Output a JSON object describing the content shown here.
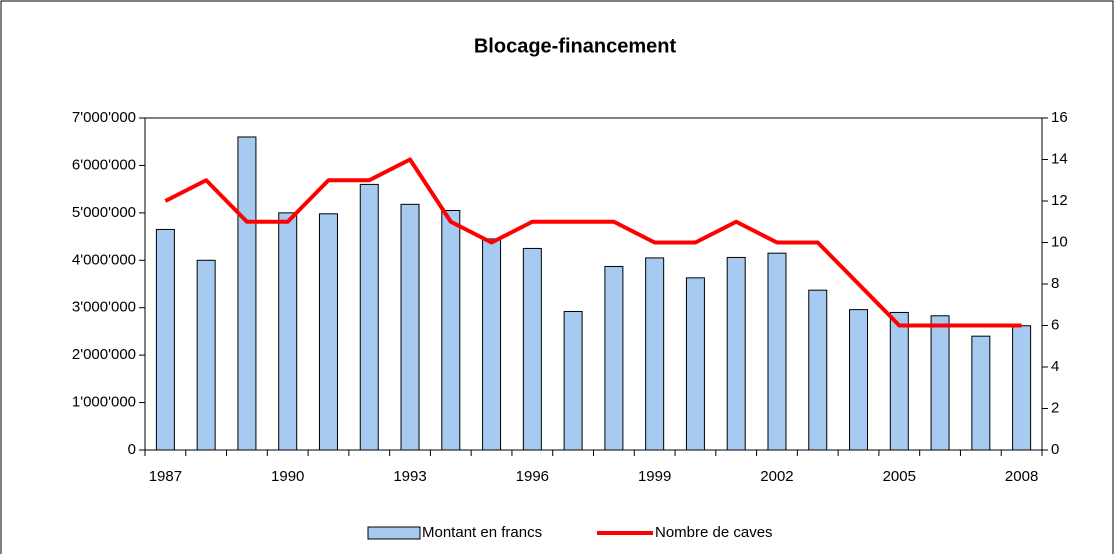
{
  "chart_data": {
    "type": "bar",
    "title": "Blocage-financement",
    "categories": [
      "1987",
      null,
      null,
      "1990",
      null,
      null,
      "1993",
      null,
      null,
      "1996",
      null,
      null,
      "1999",
      null,
      null,
      "2002",
      null,
      null,
      "2005",
      null,
      null,
      "2008"
    ],
    "series": [
      {
        "name": "Montant en francs",
        "type": "bar",
        "color": "#a6caf0",
        "values": [
          4650000,
          4000000,
          6600000,
          5000000,
          4980000,
          5600000,
          5180000,
          5050000,
          4450000,
          4250000,
          2920000,
          3870000,
          4050000,
          3630000,
          4060000,
          4150000,
          3370000,
          2960000,
          2900000,
          2830000,
          2400000,
          2620000
        ]
      },
      {
        "name": "Nombre de caves",
        "type": "line",
        "axis": "y2",
        "color": "#ff0000",
        "values": [
          12,
          13,
          11,
          11,
          13,
          13,
          14,
          11,
          10,
          11,
          11,
          11,
          10,
          10,
          11,
          10,
          10,
          8,
          6,
          6,
          6,
          6
        ]
      }
    ],
    "ylim": [
      0,
      7000000
    ],
    "yticks": [
      0,
      {
        "value": 1000000,
        "label": "1'000'000"
      },
      {
        "value": 2000000,
        "label": "2'000'000"
      },
      {
        "value": 3000000,
        "label": "3'000'000"
      },
      {
        "value": 4000000,
        "label": "4'000'000"
      },
      {
        "value": 5000000,
        "label": "5'000'000"
      },
      {
        "value": 6000000,
        "label": "6'000'000"
      },
      {
        "value": 7000000,
        "label": "7'000'000"
      }
    ],
    "y2lim": [
      0,
      16
    ],
    "y2ticks": [
      0,
      2,
      4,
      6,
      8,
      10,
      12,
      14,
      16
    ],
    "legend": "bottom"
  }
}
